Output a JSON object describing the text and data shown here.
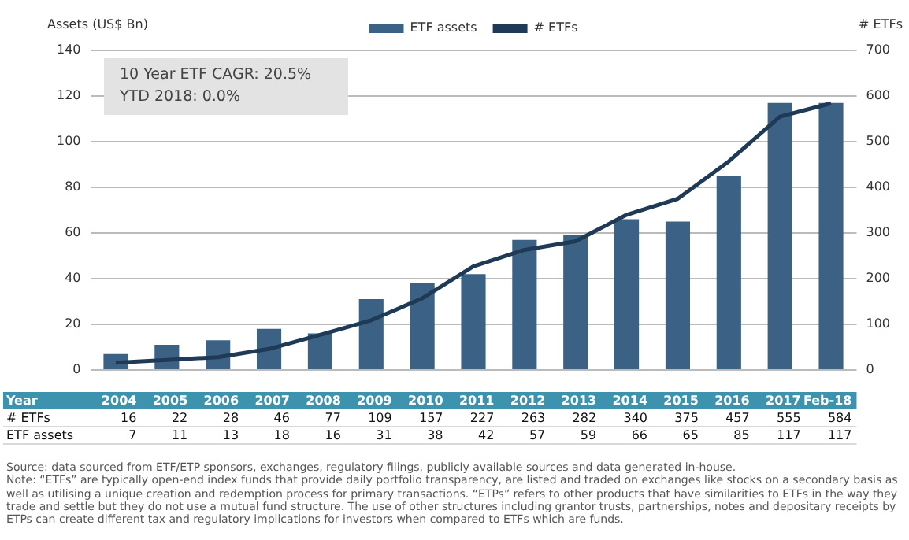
{
  "chart_data": {
    "type": "bar",
    "ylabel": "Assets (US$ Bn)",
    "y2label": "# ETFs",
    "xlabel": "Year",
    "categories": [
      "2004",
      "2005",
      "2006",
      "2007",
      "2008",
      "2009",
      "2010",
      "2011",
      "2012",
      "2013",
      "2014",
      "2015",
      "2016",
      "2017",
      "Feb-18"
    ],
    "series": [
      {
        "name": "ETF assets",
        "color": "#3b6284",
        "values": [
          7,
          11,
          13,
          18,
          16,
          31,
          38,
          42,
          57,
          59,
          66,
          65,
          85,
          117,
          117
        ]
      },
      {
        "name": "# ETFs",
        "type": "line",
        "axis": "y2",
        "color": "#1f3a56",
        "marker": "none",
        "values": [
          16,
          22,
          28,
          46,
          77,
          109,
          157,
          227,
          263,
          282,
          340,
          375,
          457,
          555,
          584
        ]
      }
    ],
    "ylim": [
      0,
      140
    ],
    "yticks": [
      0,
      20,
      40,
      60,
      80,
      100,
      120,
      140
    ],
    "y2lim": [
      0,
      700
    ],
    "y2ticks": [
      0,
      100,
      200,
      300,
      400,
      500,
      600,
      700
    ],
    "grid": "y",
    "legend": "top",
    "data_labels": true,
    "annotations": [
      "10 Year ETF CAGR: 20.5%",
      "YTD 2018: 0.0%",
      "Source: data sourced from ETF/ETP sponsors, exchanges, regulatory filings, publicly available sources and data generated in-house.",
      "Note: “ETFs” are typically open-end index funds that provide daily portfolio transparency, are listed and traded on exchanges like stocks on a secondary basis as well as utilising a unique creation and redemption process for primary transactions. “ETPs” refers to other products that have similarities to ETFs in the way they trade and settle but they do not use a mutual fund structure. The use of other structures including grantor trusts, partnerships, notes and depositary receipts by ETPs can create different tax and regulatory implications for investors when compared to ETFs which are funds."
    ]
  }
}
